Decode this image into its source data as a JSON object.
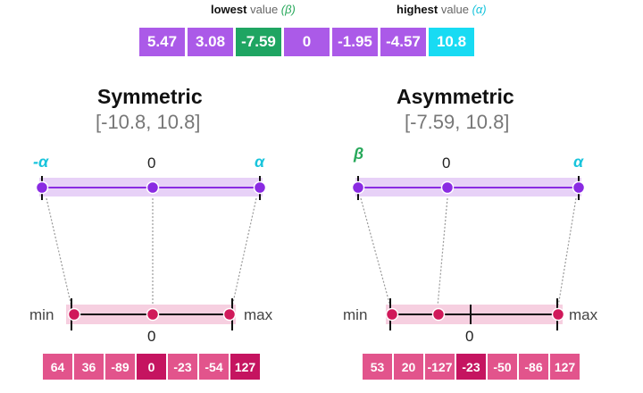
{
  "top_annotations": {
    "lowest": {
      "bold": "lowest",
      "rest": "value",
      "symbol": "(β)"
    },
    "highest": {
      "bold": "highest",
      "rest": "value",
      "symbol": "(α)"
    }
  },
  "input_values": [
    "5.47",
    "3.08",
    "-7.59",
    "0",
    "-1.95",
    "-4.57",
    "10.8"
  ],
  "colors": {
    "purple": "#ab5ae8",
    "green": "#1fa562",
    "cyan": "#18dbf3",
    "pink": "#e2548c",
    "dark_pink": "#c51460",
    "line_purple": "#8a2be2",
    "band_purple": "#e7d1f7",
    "band_pink": "#f6cfe0"
  },
  "symmetric": {
    "title": "Symmetric",
    "range": "[-10.8, 10.8]",
    "left_label": "-α",
    "zero_label": "0",
    "right_label": "α",
    "min_label": "min",
    "bottom_zero": "0",
    "max_label": "max",
    "output_values": [
      "64",
      "36",
      "-89",
      "0",
      "-23",
      "-54",
      "127"
    ]
  },
  "asymmetric": {
    "title": "Asymmetric",
    "range": "[-7.59, 10.8]",
    "left_label": "β",
    "zero_label": "0",
    "right_label": "α",
    "min_label": "min",
    "bottom_zero": "0",
    "max_label": "max",
    "output_values": [
      "53",
      "20",
      "-127",
      "-23",
      "-50",
      "-86",
      "127"
    ]
  }
}
